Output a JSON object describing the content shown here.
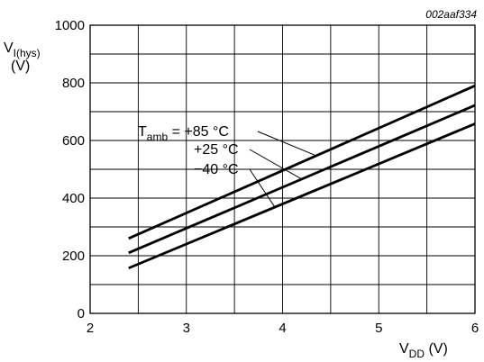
{
  "chart_data": {
    "type": "line",
    "code": "002aaf334",
    "xlabel": {
      "main": "V",
      "sub": "DD",
      "unit": " (V)"
    },
    "ylabel": {
      "main": "V",
      "sub": "I(hys)",
      "unit": "(V)"
    },
    "xlim": [
      2,
      6
    ],
    "ylim": [
      0,
      1000
    ],
    "x_ticks": [
      2,
      3,
      4,
      5,
      6
    ],
    "y_ticks": [
      0,
      200,
      400,
      600,
      800,
      1000
    ],
    "grid": true,
    "annotation": {
      "prefix_main": "T",
      "prefix_sub": "amb",
      "prefix_eq": " = "
    },
    "series": [
      {
        "name": "+85 °C",
        "x": [
          2.4,
          6
        ],
        "y": [
          260,
          790
        ]
      },
      {
        "name": "+25 °C",
        "x": [
          2.4,
          6
        ],
        "y": [
          210,
          722
        ]
      },
      {
        "name": "−40 °C",
        "x": [
          2.4,
          6
        ],
        "y": [
          157,
          658
        ]
      }
    ]
  }
}
